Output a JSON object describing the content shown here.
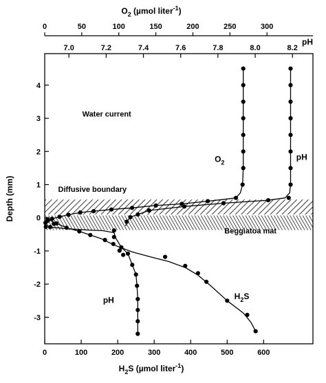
{
  "chart_data": {
    "type": "scatter",
    "title": "",
    "axes": {
      "y": {
        "label": "Depth (mm)",
        "range": [
          -3.8,
          4.95
        ],
        "ticks": [
          4,
          3,
          2,
          1,
          0,
          -1,
          -2,
          -3
        ]
      },
      "x_bottom": {
        "label_prefix": "H",
        "label_sub": "2",
        "label_suffix": "S (µmol liter",
        "label_sup": "-1",
        "label_close": ")",
        "range": [
          0,
          735
        ],
        "ticks": [
          0,
          100,
          200,
          300,
          400,
          500,
          600
        ]
      },
      "x_top_o2": {
        "label_prefix": "O",
        "label_sub": "2",
        "label_suffix": " (µmol liter",
        "label_sup": "-1",
        "label_close": ")",
        "range": [
          0,
          362
        ],
        "ticks": [
          0,
          50,
          100,
          150,
          200,
          250,
          300
        ]
      },
      "x_top_ph": {
        "label": "pH",
        "range": [
          6.87,
          8.31
        ],
        "ticks": [
          "7.0",
          "7.2",
          "7.4",
          "7.6",
          "7.8",
          "8.0",
          "8.2"
        ]
      }
    },
    "bands": [
      {
        "name": "Diffusive boundary",
        "y_range": [
          0.1,
          0.55
        ],
        "pattern": "hatch"
      },
      {
        "name": "Beggiatoa mat",
        "y_range": [
          -0.37,
          0.07
        ],
        "pattern": "crosshatch"
      }
    ],
    "annotations": [
      {
        "text": "Water current",
        "x_frac": 0.14,
        "y": 3.05
      },
      {
        "text": "Diffusive boundary",
        "x_frac": 0.05,
        "y": 0.78
      },
      {
        "text": "Beggiatoa mat",
        "x_frac": 0.67,
        "y": -0.47
      }
    ],
    "series": [
      {
        "name": "O2",
        "label_parts": {
          "main": "O",
          "sub": "2"
        },
        "axis": "x_top_o2",
        "label_pos": {
          "x": 236,
          "y": 1.68
        },
        "points": [
          [
            268,
            4.5
          ],
          [
            268,
            4.0
          ],
          [
            268,
            3.5
          ],
          [
            268,
            3.0
          ],
          [
            268,
            2.5
          ],
          [
            268,
            2.0
          ],
          [
            268,
            1.5
          ],
          [
            267,
            1.0
          ],
          [
            258,
            0.6
          ],
          [
            220,
            0.5
          ],
          [
            185,
            0.42
          ],
          [
            150,
            0.37
          ],
          [
            118,
            0.3
          ],
          [
            90,
            0.25
          ],
          [
            66,
            0.2
          ],
          [
            48,
            0.16
          ],
          [
            32,
            0.09
          ],
          [
            20,
            0.03
          ],
          [
            10,
            -0.03
          ],
          [
            4,
            -0.09
          ],
          [
            1,
            -0.15
          ]
        ],
        "curve": [
          [
            268,
            4.5
          ],
          [
            268,
            1.5
          ],
          [
            267,
            1.0
          ],
          [
            264,
            0.75
          ],
          [
            258,
            0.6
          ],
          [
            240,
            0.55
          ],
          [
            220,
            0.5
          ],
          [
            185,
            0.42
          ],
          [
            150,
            0.37
          ],
          [
            118,
            0.3
          ],
          [
            90,
            0.25
          ],
          [
            66,
            0.2
          ],
          [
            48,
            0.16
          ],
          [
            32,
            0.09
          ],
          [
            20,
            0.03
          ],
          [
            10,
            -0.03
          ],
          [
            4,
            -0.09
          ],
          [
            1,
            -0.15
          ]
        ]
      },
      {
        "name": "pH",
        "label_parts": {
          "main": "pH"
        },
        "axis": "x_top_ph",
        "label_pos": {
          "x": 8.25,
          "y": 1.75
        },
        "points": [
          [
            8.19,
            4.5
          ],
          [
            8.19,
            4.0
          ],
          [
            8.19,
            3.5
          ],
          [
            8.19,
            3.0
          ],
          [
            8.19,
            2.5
          ],
          [
            8.19,
            2.0
          ],
          [
            8.19,
            1.5
          ],
          [
            8.19,
            1.0
          ],
          [
            8.18,
            0.6
          ],
          [
            8.07,
            0.53
          ],
          [
            7.83,
            0.44
          ],
          [
            7.62,
            0.34
          ],
          [
            7.43,
            0.22
          ],
          [
            7.37,
            0.1
          ],
          [
            7.33,
            0.02
          ],
          [
            7.31,
            -0.12
          ]
        ],
        "curve": [
          [
            8.19,
            4.5
          ],
          [
            8.19,
            1.0
          ],
          [
            8.185,
            0.75
          ],
          [
            8.16,
            0.6
          ],
          [
            8.07,
            0.53
          ],
          [
            7.83,
            0.44
          ],
          [
            7.62,
            0.34
          ],
          [
            7.43,
            0.22
          ],
          [
            7.37,
            0.1
          ],
          [
            7.33,
            0.02
          ],
          [
            7.31,
            -0.12
          ],
          [
            7.305,
            -0.25
          ]
        ]
      },
      {
        "name": "H2S",
        "label_parts": {
          "main": "H",
          "sub": "2",
          "rest": "S"
        },
        "axis": "x_bottom",
        "label_pos": {
          "x": 540,
          "y": -2.45
        },
        "points": [
          [
            8,
            -0.04
          ],
          [
            32,
            -0.17
          ],
          [
            60,
            -0.3
          ],
          [
            95,
            -0.41
          ],
          [
            125,
            -0.52
          ],
          [
            165,
            -0.67
          ],
          [
            188,
            -0.79
          ],
          [
            205,
            -0.99
          ],
          [
            215,
            -1.12
          ],
          [
            330,
            -1.18
          ],
          [
            385,
            -1.45
          ],
          [
            420,
            -1.67
          ],
          [
            443,
            -1.93
          ],
          [
            500,
            -2.5
          ],
          [
            555,
            -2.93
          ],
          [
            578,
            -3.42
          ]
        ],
        "curve": [
          [
            3,
            0.0
          ],
          [
            8,
            -0.04
          ],
          [
            32,
            -0.17
          ],
          [
            60,
            -0.3
          ],
          [
            95,
            -0.41
          ],
          [
            125,
            -0.52
          ],
          [
            155,
            -0.63
          ],
          [
            190,
            -0.82
          ],
          [
            240,
            -1.03
          ],
          [
            290,
            -1.18
          ],
          [
            340,
            -1.32
          ],
          [
            385,
            -1.5
          ],
          [
            420,
            -1.73
          ],
          [
            455,
            -2.05
          ],
          [
            500,
            -2.5
          ],
          [
            545,
            -2.88
          ],
          [
            565,
            -3.15
          ],
          [
            578,
            -3.42
          ]
        ]
      },
      {
        "name": "pH",
        "label_parts": {
          "main": "pH"
        },
        "axis": "x_bottom",
        "label_pos": {
          "x": 175,
          "y": -2.57
        },
        "points": [
          [
            3,
            -0.27
          ],
          [
            15,
            -0.28
          ],
          [
            25,
            -0.18
          ],
          [
            190,
            -0.38
          ],
          [
            190,
            -0.58
          ],
          [
            210,
            -0.89
          ],
          [
            228,
            -1.08
          ],
          [
            240,
            -1.42
          ],
          [
            250,
            -1.71
          ],
          [
            253,
            -2.05
          ],
          [
            255,
            -2.45
          ],
          [
            255,
            -2.78
          ],
          [
            255,
            -3.12
          ],
          [
            255,
            -3.5
          ]
        ],
        "curve": [
          [
            15,
            -0.28
          ],
          [
            60,
            -0.33
          ],
          [
            120,
            -0.37
          ],
          [
            160,
            -0.39
          ],
          [
            190,
            -0.45
          ],
          [
            195,
            -0.62
          ],
          [
            210,
            -0.89
          ],
          [
            228,
            -1.08
          ],
          [
            240,
            -1.42
          ],
          [
            250,
            -1.71
          ],
          [
            253,
            -2.05
          ],
          [
            255,
            -2.45
          ],
          [
            255,
            -3.5
          ]
        ]
      }
    ]
  }
}
